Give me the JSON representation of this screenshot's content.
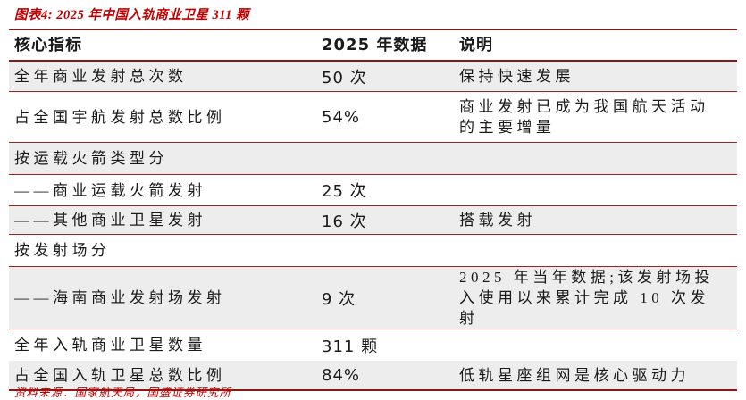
{
  "title": "图表4:  2025 年中国入轨商业卫星 311 颗",
  "colors": {
    "accent_red": "#c00000",
    "table_border_red": "#8a1a1a",
    "row_line_red": "#a12424",
    "stripe_gray": "#ededed"
  },
  "table": {
    "headers": {
      "indicator": "核心指标",
      "value": "2025 年数据",
      "note": "说明"
    },
    "rows": [
      {
        "indicator": "全年商业发射总次数",
        "value": "50 次",
        "note": "保持快速发展"
      },
      {
        "indicator": "占全国宇航发射总数比例",
        "value": "54%",
        "note": "商业发射已成为我国航天活动的主要增量"
      },
      {
        "indicator": "按运载火箭类型分",
        "value": "",
        "note": ""
      },
      {
        "indicator": "——商业运载火箭发射",
        "value": "25 次",
        "note": ""
      },
      {
        "indicator": "——其他商业卫星发射",
        "value": "16 次",
        "note": "搭载发射"
      },
      {
        "indicator": "按发射场分",
        "value": "",
        "note": ""
      },
      {
        "indicator": "——海南商业发射场发射",
        "value": "9 次",
        "note": "2025 年当年数据;该发射场投入使用以来累计完成 10 次发射"
      },
      {
        "indicator": "全年入轨商业卫星数量",
        "value": "311 颗",
        "note": ""
      },
      {
        "indicator": "占全国入轨卫星总数比例",
        "value": "84%",
        "note": "低轨星座组网是核心驱动力"
      }
    ]
  },
  "footer": "资料来源：国家航天局，国盛证券研究所"
}
